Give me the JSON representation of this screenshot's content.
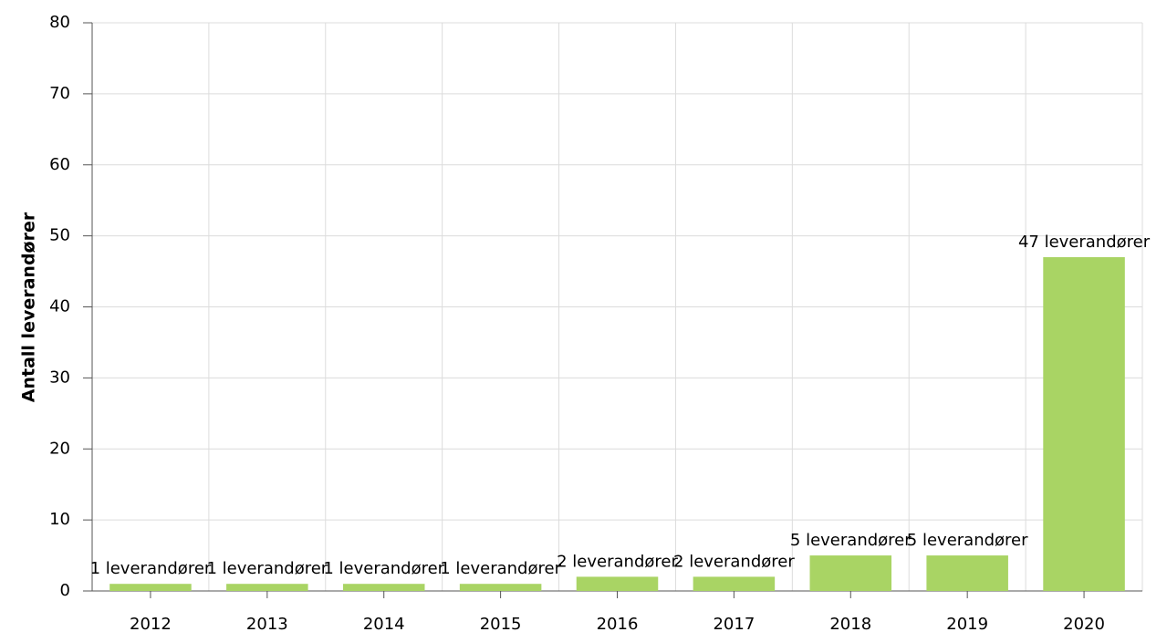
{
  "chart_data": {
    "type": "bar",
    "y_label": "Antall leverandører",
    "categories": [
      "2012",
      "2013",
      "2014",
      "2015",
      "2016",
      "2017",
      "2018",
      "2019",
      "2020"
    ],
    "values": [
      1,
      1,
      1,
      1,
      2,
      2,
      5,
      5,
      47
    ],
    "value_labels": [
      "1 leverandører",
      "1 leverandører",
      "1 leverandører",
      "1 leverandører",
      "2 leverandører",
      "2 leverandører",
      "5 leverandører",
      "5 leverandører",
      "47 leverandører"
    ],
    "color": "#a9d464",
    "ylim": [
      0,
      80
    ],
    "yticks": [
      0,
      10,
      20,
      30,
      40,
      50,
      60,
      70,
      80
    ],
    "grid": true
  }
}
